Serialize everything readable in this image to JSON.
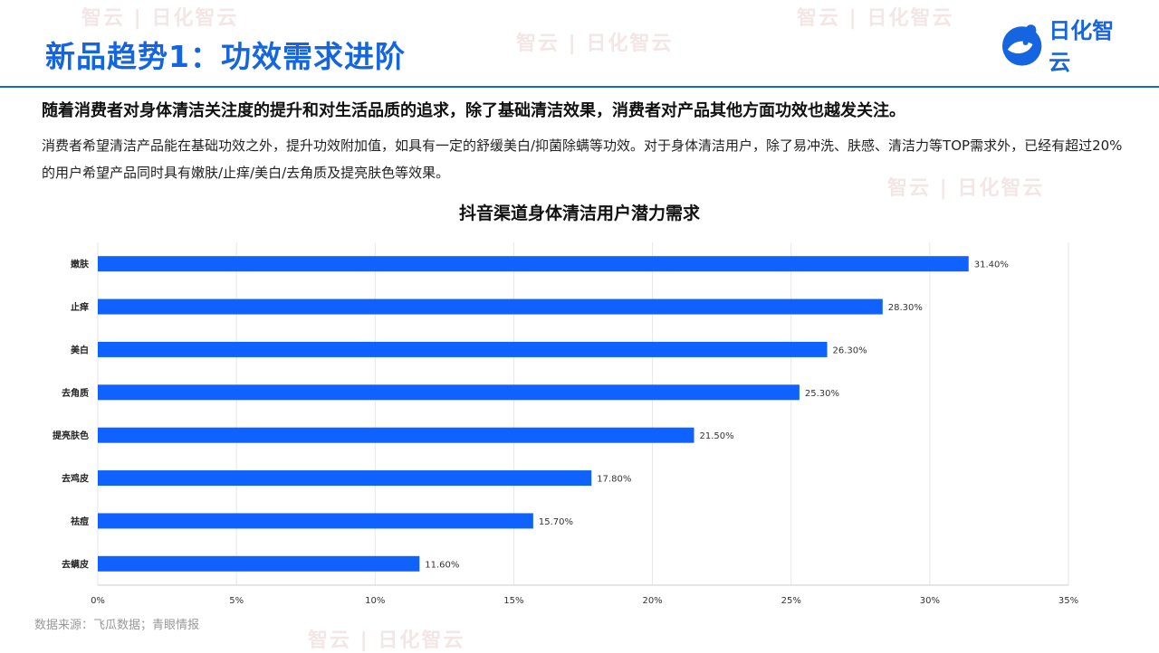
{
  "page": {
    "title": "新品趋势1：功效需求进阶",
    "lead": "随着消费者对身体清洁关注度的提升和对生活品质的追求，除了基础清洁效果，消费者对产品其他方面功效也越发关注。",
    "paragraph": "消费者希望清洁产品能在基础功效之外，提升功效附加值，如具有一定的舒缓美白/抑菌除螨等功效。对于身体清洁用户，除了易冲洗、肤感、清洁力等TOP需求外，已经有超过20%的用户希望产品同时具有嫩肤/止痒/美白/去角质及提亮肤色等效果。",
    "source": "数据来源：飞瓜数据；青眼情报",
    "logo_text": "日化智云",
    "watermark_text": "智云 | 日化智云"
  },
  "colors": {
    "accent": "#1565e0",
    "bar": "#0f62fe",
    "grid": "#e6e6e6"
  },
  "chart_data": {
    "type": "bar",
    "orientation": "horizontal",
    "title": "抖音渠道身体清洁用户潜力需求",
    "categories": [
      "嫩肤",
      "止痒",
      "美白",
      "去角质",
      "提亮肤色",
      "去鸡皮",
      "祛痘",
      "去螨皮"
    ],
    "values": [
      31.4,
      28.3,
      26.3,
      25.3,
      21.5,
      17.8,
      15.7,
      11.6
    ],
    "value_labels": [
      "31.40%",
      "28.30%",
      "26.30%",
      "25.30%",
      "21.50%",
      "17.80%",
      "15.70%",
      "11.60%"
    ],
    "xlim": [
      0,
      35
    ],
    "xticks": [
      0,
      5,
      10,
      15,
      20,
      25,
      30,
      35
    ],
    "xtick_labels": [
      "0%",
      "5%",
      "10%",
      "15%",
      "20%",
      "25%",
      "30%",
      "35%"
    ],
    "xlabel": "",
    "ylabel": "",
    "grid": true
  }
}
